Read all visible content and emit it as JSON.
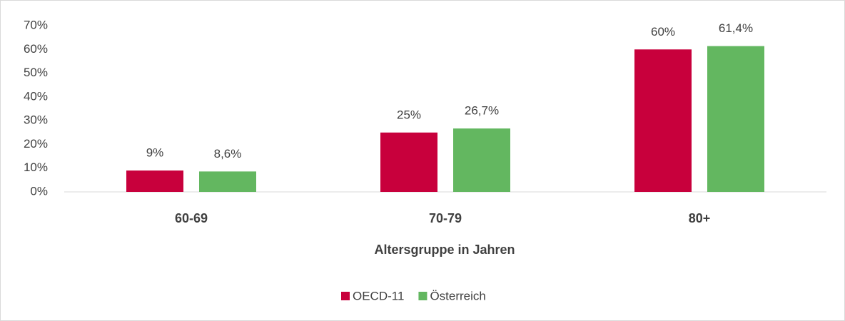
{
  "chart_data": {
    "type": "bar",
    "x_label": "Altersgruppe in Jahren",
    "categories": [
      "60-69",
      "70-79",
      "80+"
    ],
    "series": [
      {
        "name": "OECD-11",
        "color": "#c8003c",
        "values": [
          9,
          25,
          60
        ],
        "value_labels": [
          "9%",
          "25%",
          "60%"
        ]
      },
      {
        "name": "Österreich",
        "color": "#63b760",
        "values": [
          8.6,
          26.7,
          61.4
        ],
        "value_labels": [
          "8,6%",
          "26,7%",
          "61,4%"
        ]
      }
    ],
    "ylim": [
      0,
      70
    ],
    "yticks": [
      {
        "value": 0,
        "label": "0%"
      },
      {
        "value": 10,
        "label": "10%"
      },
      {
        "value": 20,
        "label": "20%"
      },
      {
        "value": 30,
        "label": "30%"
      },
      {
        "value": 40,
        "label": "40%"
      },
      {
        "value": 50,
        "label": "50%"
      },
      {
        "value": 60,
        "label": "60%"
      },
      {
        "value": 70,
        "label": "70%"
      }
    ],
    "legend": "bottom"
  }
}
